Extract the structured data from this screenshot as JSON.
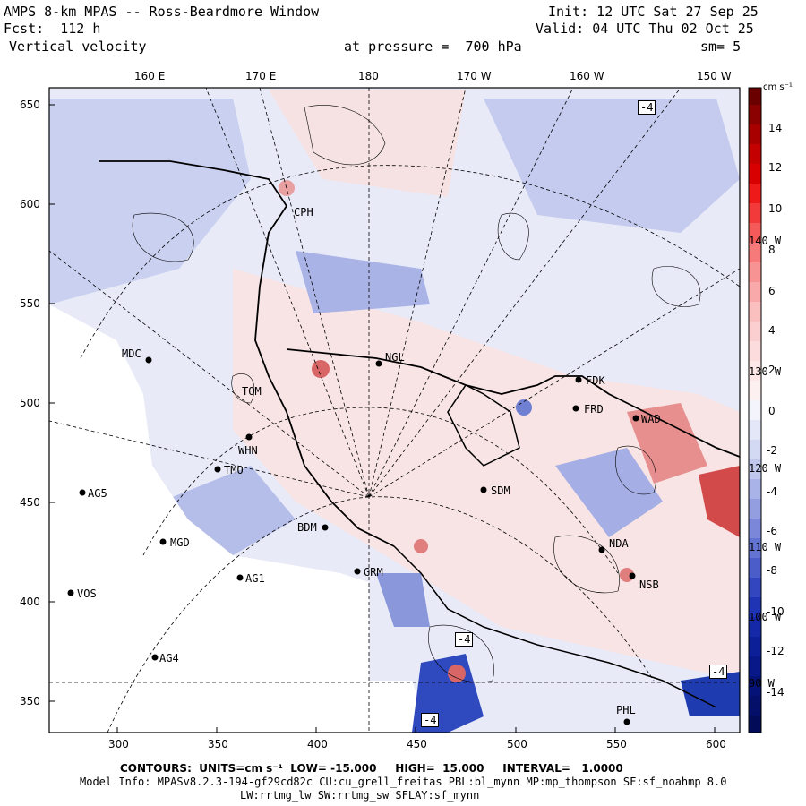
{
  "header": {
    "title": "AMPS 8-km MPAS -- Ross-Beardmore Window",
    "init": "Init: 12 UTC Sat 27 Sep 25",
    "forecast": "Fcst:  112 h",
    "valid": "Valid: 04 UTC Thu 02 Oct 25",
    "field": "Vertical velocity",
    "pressure": "at pressure =  700 hPa",
    "smoothing": "sm= 5"
  },
  "top_axis": [
    "160 E",
    "170 E",
    "180",
    "170 W",
    "160 W",
    "150 W"
  ],
  "left_axis": [
    "650",
    "600",
    "550",
    "500",
    "450",
    "400",
    "350"
  ],
  "bottom_axis": [
    "300",
    "350",
    "400",
    "450",
    "500",
    "550",
    "600"
  ],
  "colorbar": {
    "unit": "cm s⁻¹",
    "labels": [
      "14",
      "12",
      "10",
      "8",
      "6",
      "4",
      "2",
      "0",
      "-2",
      "-4",
      "-6",
      "-8",
      "-10",
      "-12",
      "-14"
    ]
  },
  "stations": [
    {
      "id": "CPH",
      "lbl": "CPH"
    },
    {
      "id": "MDC",
      "lbl": "MDC"
    },
    {
      "id": "NGL",
      "lbl": "NGL"
    },
    {
      "id": "FDK",
      "lbl": "FDK"
    },
    {
      "id": "FRD",
      "lbl": "FRD"
    },
    {
      "id": "TOM",
      "lbl": "TOM"
    },
    {
      "id": "WHN",
      "lbl": "WHN"
    },
    {
      "id": "TMO",
      "lbl": "TMO"
    },
    {
      "id": "AG5",
      "lbl": "AG5"
    },
    {
      "id": "SDM",
      "lbl": "SDM"
    },
    {
      "id": "BDM",
      "lbl": "BDM"
    },
    {
      "id": "MGD",
      "lbl": "MGD"
    },
    {
      "id": "GRM",
      "lbl": "GRM"
    },
    {
      "id": "AG1",
      "lbl": "AG1"
    },
    {
      "id": "VOS",
      "lbl": "VOS"
    },
    {
      "id": "NSB",
      "lbl": "NSB"
    },
    {
      "id": "NDA",
      "lbl": "NDA"
    },
    {
      "id": "AG4",
      "lbl": "AG4"
    },
    {
      "id": "PHL",
      "lbl": "PHL"
    },
    {
      "id": "WAD",
      "lbl": "WAD"
    }
  ],
  "contour_labels": [
    "-4",
    "-4",
    "-4",
    "-4"
  ],
  "lon_labels_right": [
    "140 W",
    "130 W",
    "120 W",
    "110 W",
    "100 W",
    "90 W"
  ],
  "footer": {
    "contours": "CONTOURS:  UNITS=cm s⁻¹  LOW= -15.000     HIGH=  15.000     INTERVAL=   1.0000",
    "model_info": "Model Info: MPASv8.2.3-194-gf29cd82c CU:cu_grell_freitas PBL:bl_mynn MP:mp_thompson SF:sf_noahmp 8.0",
    "model_info2": "LW:rrtmg_lw SW:rrtmg_sw SFLAY:sf_mynn"
  },
  "colors": {
    "land_white": "#ffffff",
    "neg_strong": "#0b2ab0",
    "neg_light": "#dde1f5",
    "pos_light": "#f6dede",
    "pos_strong": "#c71212"
  }
}
